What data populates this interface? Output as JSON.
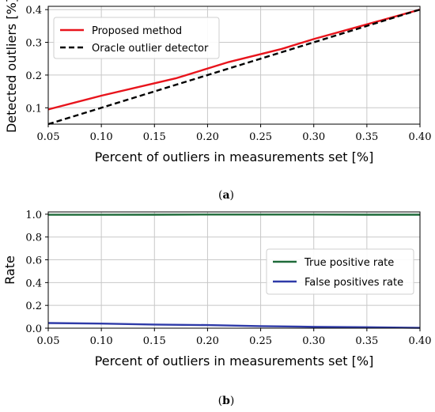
{
  "chart_data": [
    {
      "type": "line",
      "xlabel": "Percent of outliers in measurements set [%]",
      "ylabel": "Detected outliers [%]",
      "xlim": [
        0.05,
        0.4
      ],
      "ylim": [
        0.05,
        0.41
      ],
      "xticks": [
        0.05,
        0.1,
        0.15,
        0.2,
        0.25,
        0.3,
        0.35,
        0.4
      ],
      "xtick_labels": [
        "0.05",
        "0.10",
        "0.15",
        "0.20",
        "0.25",
        "0.30",
        "0.35",
        "0.40"
      ],
      "yticks": [
        0.1,
        0.2,
        0.3,
        0.4
      ],
      "ytick_labels": [
        "0.1",
        "0.2",
        "0.3",
        "0.4"
      ],
      "grid": true,
      "legend_position": "top-left",
      "series": [
        {
          "name": "Proposed method",
          "color": "#e8141c",
          "style": "solid",
          "x": [
            0.05,
            0.1,
            0.15,
            0.17,
            0.22,
            0.27,
            0.3,
            0.35,
            0.4
          ],
          "y": [
            0.095,
            0.137,
            0.175,
            0.19,
            0.24,
            0.28,
            0.31,
            0.355,
            0.4
          ]
        },
        {
          "name": "Oracle outlier detector",
          "color": "#000000",
          "style": "dashed",
          "x": [
            0.05,
            0.4
          ],
          "y": [
            0.05,
            0.4
          ]
        }
      ],
      "caption": "(a)"
    },
    {
      "type": "line",
      "xlabel": "Percent of outliers in measurements set [%]",
      "ylabel": "Rate",
      "xlim": [
        0.05,
        0.4
      ],
      "ylim": [
        0.0,
        1.02
      ],
      "xticks": [
        0.05,
        0.1,
        0.15,
        0.2,
        0.25,
        0.3,
        0.35,
        0.4
      ],
      "xtick_labels": [
        "0.05",
        "0.10",
        "0.15",
        "0.20",
        "0.25",
        "0.30",
        "0.35",
        "0.40"
      ],
      "yticks": [
        0.0,
        0.2,
        0.4,
        0.6,
        0.8,
        1.0
      ],
      "ytick_labels": [
        "0.0",
        "0.2",
        "0.4",
        "0.6",
        "0.8",
        "1.0"
      ],
      "grid": true,
      "legend_position": "center-right",
      "series": [
        {
          "name": "True positive rate",
          "color": "#1f6b3a",
          "style": "solid",
          "x": [
            0.05,
            0.1,
            0.15,
            0.2,
            0.25,
            0.3,
            0.35,
            0.4
          ],
          "y": [
            0.995,
            0.995,
            0.996,
            0.997,
            0.997,
            0.997,
            0.996,
            0.996
          ]
        },
        {
          "name": "False positives rate",
          "color": "#2e3aa8",
          "style": "solid",
          "x": [
            0.05,
            0.1,
            0.15,
            0.2,
            0.25,
            0.3,
            0.35,
            0.4
          ],
          "y": [
            0.045,
            0.04,
            0.032,
            0.027,
            0.018,
            0.012,
            0.008,
            0.003
          ]
        }
      ],
      "caption": "(b)"
    }
  ]
}
